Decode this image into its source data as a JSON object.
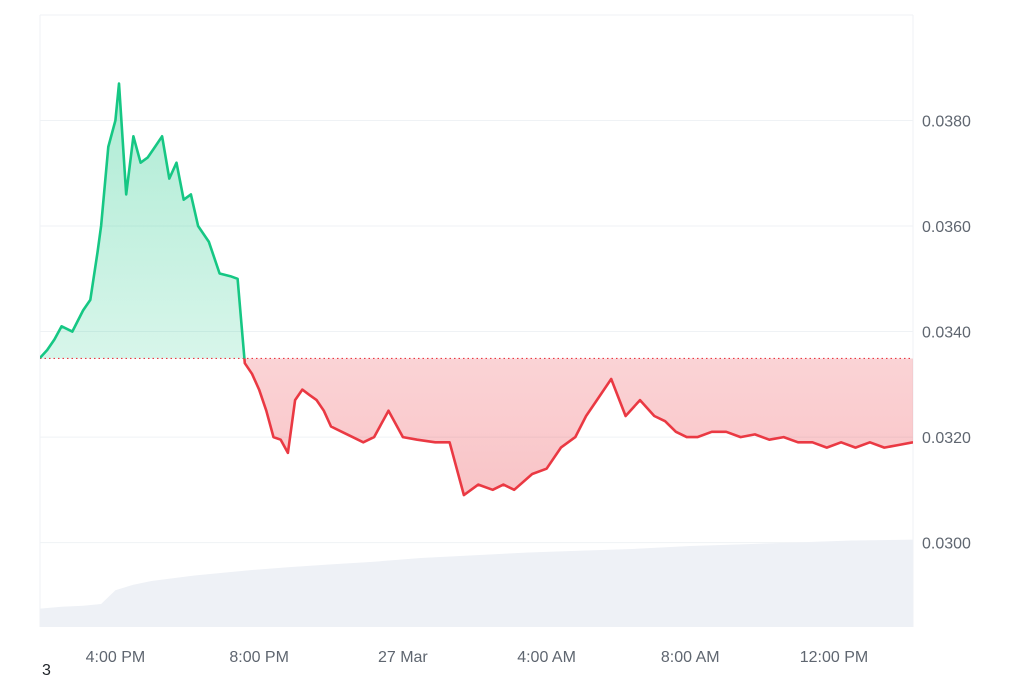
{
  "corner_note": "3",
  "chart_data": {
    "type": "area",
    "ylim": [
      0.0284,
      0.04
    ],
    "y_ticks": [
      0.03,
      0.032,
      0.034,
      0.036,
      0.038
    ],
    "y_tick_labels": [
      "0.0300",
      "0.0320",
      "0.0340",
      "0.0360",
      "0.0380"
    ],
    "x_tick_labels": [
      "4:00 PM",
      "8:00 PM",
      "27 Mar",
      "4:00 AM",
      "8:00 AM",
      "12:00 PM"
    ],
    "x_tick_hours": [
      16,
      20,
      24,
      28,
      32,
      36
    ],
    "x_range_hours": [
      13.9,
      38.2
    ],
    "baseline": 0.03349,
    "grid": true,
    "colors": {
      "up_line": "#16c784",
      "up_fill": "#16c784",
      "down_line": "#ea3943",
      "down_fill": "#ea3943",
      "baseline": "#ea3943",
      "volume": "#eef1f6",
      "grid": "#eff2f5",
      "axis_text": "#5f6670"
    },
    "series": [
      {
        "x": [
          13.9,
          14.1,
          14.3,
          14.5,
          14.8,
          15.1,
          15.3,
          15.5,
          15.6,
          15.8,
          16.0,
          16.1,
          16.3,
          16.5,
          16.7,
          16.9,
          17.1,
          17.3,
          17.5,
          17.7,
          17.9,
          18.1,
          18.3,
          18.6,
          18.9,
          19.2,
          19.4,
          19.6,
          19.8,
          20.0,
          20.2,
          20.4,
          20.6,
          20.8,
          21.0,
          21.2,
          21.4,
          21.6,
          21.8,
          22.0,
          22.3,
          22.6,
          22.9,
          23.2,
          23.6,
          24.0,
          24.4,
          24.9,
          25.3,
          25.7,
          26.1,
          26.5,
          26.8,
          27.1,
          27.6,
          28.0,
          28.4,
          28.8,
          29.1,
          29.4,
          29.8,
          30.2,
          30.6,
          31.0,
          31.3,
          31.6,
          31.9,
          32.2,
          32.6,
          33.0,
          33.4,
          33.8,
          34.2,
          34.6,
          35.0,
          35.4,
          35.8,
          36.2,
          36.6,
          37.0,
          37.4,
          37.8,
          38.2
        ],
        "y": [
          0.0335,
          0.03365,
          0.03385,
          0.0341,
          0.034,
          0.0344,
          0.0346,
          0.0355,
          0.036,
          0.0375,
          0.038,
          0.0387,
          0.0366,
          0.0377,
          0.0372,
          0.0373,
          0.0375,
          0.0377,
          0.0369,
          0.0372,
          0.0365,
          0.0366,
          0.036,
          0.0357,
          0.0351,
          0.03505,
          0.035,
          0.0334,
          0.0332,
          0.0329,
          0.0325,
          0.032,
          0.03195,
          0.0317,
          0.0327,
          0.0329,
          0.0328,
          0.0327,
          0.0325,
          0.0322,
          0.0321,
          0.032,
          0.0319,
          0.032,
          0.0325,
          0.032,
          0.03195,
          0.0319,
          0.0319,
          0.0309,
          0.0311,
          0.031,
          0.0311,
          0.031,
          0.0313,
          0.0314,
          0.0318,
          0.032,
          0.0324,
          0.0327,
          0.0331,
          0.0324,
          0.0327,
          0.0324,
          0.0323,
          0.0321,
          0.032,
          0.032,
          0.0321,
          0.0321,
          0.032,
          0.03205,
          0.03195,
          0.032,
          0.0319,
          0.0319,
          0.0318,
          0.0319,
          0.0318,
          0.0319,
          0.0318,
          0.03185,
          0.0319
        ]
      }
    ],
    "volume_series": {
      "x": [
        13.9,
        14.5,
        15.1,
        15.6,
        16.0,
        16.5,
        17.0,
        17.6,
        18.2,
        19.0,
        19.8,
        20.8,
        22.0,
        23.2,
        24.5,
        26.0,
        27.5,
        29.0,
        30.5,
        32.0,
        33.5,
        35.0,
        36.5,
        38.2
      ],
      "y": [
        0.2,
        0.22,
        0.23,
        0.25,
        0.4,
        0.46,
        0.5,
        0.53,
        0.56,
        0.59,
        0.62,
        0.65,
        0.68,
        0.71,
        0.75,
        0.78,
        0.81,
        0.83,
        0.85,
        0.88,
        0.9,
        0.92,
        0.94,
        0.95
      ]
    }
  }
}
